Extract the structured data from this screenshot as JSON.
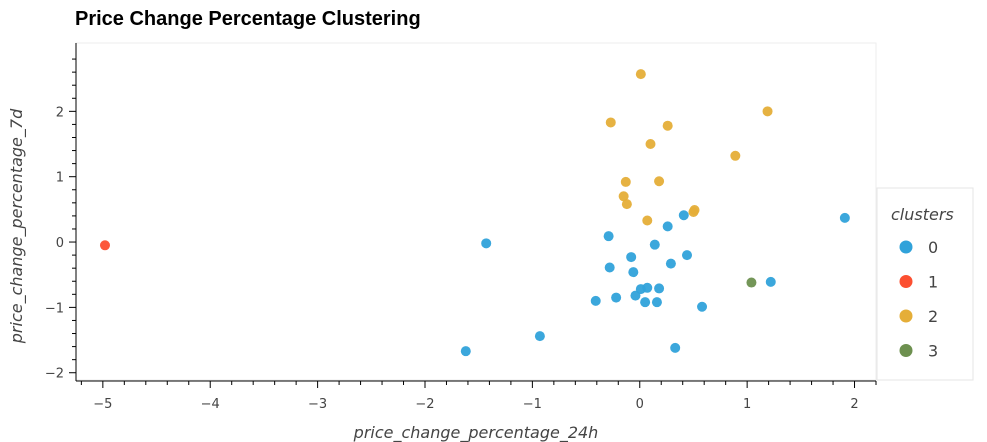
{
  "chart_data": {
    "type": "scatter",
    "title": "Price Change Percentage Clustering",
    "xlabel": "price_change_percentage_24h",
    "ylabel": "price_change_percentage_7d",
    "xlim": [
      -5.25,
      2.2
    ],
    "ylim": [
      -2.05,
      3.0
    ],
    "x_ticks": [
      -5,
      -4,
      -3,
      -2,
      -1,
      0,
      1,
      2
    ],
    "x_tick_labels": [
      "−5",
      "−4",
      "−3",
      "−2",
      "−1",
      "0",
      "1",
      "2"
    ],
    "y_ticks": [
      -2,
      -1,
      0,
      1,
      2
    ],
    "y_tick_labels": [
      "−2",
      "−1",
      "0",
      "1",
      "2"
    ],
    "grid": false,
    "legend": {
      "title": "clusters",
      "placement": "right"
    },
    "series": [
      {
        "name": "0",
        "color": "#30a2da",
        "points": [
          [
            -1.62,
            -1.67
          ],
          [
            -1.43,
            -0.02
          ],
          [
            -0.93,
            -1.44
          ],
          [
            -0.41,
            -0.9
          ],
          [
            -0.29,
            0.09
          ],
          [
            -0.28,
            -0.39
          ],
          [
            -0.22,
            -0.85
          ],
          [
            -0.08,
            -0.23
          ],
          [
            -0.06,
            -0.46
          ],
          [
            -0.04,
            -0.82
          ],
          [
            0.01,
            -0.72
          ],
          [
            0.05,
            -0.92
          ],
          [
            0.07,
            -0.7
          ],
          [
            0.14,
            -0.04
          ],
          [
            0.16,
            -0.92
          ],
          [
            0.18,
            -0.71
          ],
          [
            0.26,
            0.24
          ],
          [
            0.29,
            -0.33
          ],
          [
            0.33,
            -1.62
          ],
          [
            0.41,
            0.41
          ],
          [
            0.44,
            -0.2
          ],
          [
            0.58,
            -0.99
          ],
          [
            1.22,
            -0.61
          ],
          [
            1.91,
            0.37
          ]
        ]
      },
      {
        "name": "1",
        "color": "#fc4f30",
        "points": [
          [
            -4.98,
            -0.05
          ]
        ]
      },
      {
        "name": "2",
        "color": "#e5ae38",
        "points": [
          [
            -0.27,
            1.83
          ],
          [
            -0.15,
            0.7
          ],
          [
            -0.13,
            0.92
          ],
          [
            -0.12,
            0.58
          ],
          [
            0.01,
            2.57
          ],
          [
            0.07,
            0.33
          ],
          [
            0.1,
            1.5
          ],
          [
            0.18,
            0.93
          ],
          [
            0.26,
            1.78
          ],
          [
            0.5,
            0.46
          ],
          [
            0.51,
            0.49
          ],
          [
            0.89,
            1.32
          ],
          [
            1.19,
            2.0
          ]
        ]
      },
      {
        "name": "3",
        "color": "#6d904f",
        "points": [
          [
            1.04,
            -0.62
          ]
        ]
      }
    ]
  }
}
